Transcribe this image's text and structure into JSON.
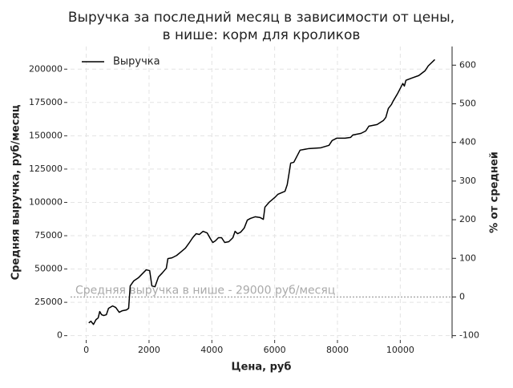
{
  "chart_data": {
    "type": "line",
    "title": [
      "Выручка за последний месяц в зависимости от цены,",
      "в нише: корм для кроликов"
    ],
    "x_label": "Цена, руб",
    "y_label": "Средняя выручка, руб/месяц",
    "y2_label": "% от средней",
    "x": [
      80,
      150,
      230,
      310,
      380,
      430,
      490,
      560,
      640,
      710,
      840,
      940,
      1050,
      1150,
      1280,
      1350,
      1400,
      1510,
      1660,
      1810,
      1910,
      2020,
      2090,
      2190,
      2300,
      2420,
      2550,
      2600,
      2730,
      2880,
      3040,
      3160,
      3270,
      3390,
      3500,
      3600,
      3720,
      3850,
      3950,
      4030,
      4110,
      4210,
      4310,
      4410,
      4540,
      4670,
      4740,
      4820,
      4920,
      5030,
      5130,
      5230,
      5380,
      5540,
      5640,
      5690,
      5820,
      6000,
      6100,
      6330,
      6400,
      6450,
      6510,
      6610,
      6810,
      7090,
      7470,
      7730,
      7830,
      7980,
      8240,
      8420,
      8490,
      8750,
      8900,
      9000,
      9260,
      9460,
      9540,
      9620,
      9720,
      9770,
      9920,
      10080,
      10130,
      10180,
      10380,
      10590,
      10790,
      10890,
      11100
    ],
    "series": [
      {
        "name": "Выручка",
        "color": "#000000",
        "values": [
          9600,
          10800,
          8400,
          12000,
          13300,
          18100,
          15700,
          15100,
          15700,
          20500,
          22300,
          21100,
          17500,
          18700,
          19300,
          20500,
          37300,
          41000,
          43400,
          47000,
          49400,
          48800,
          37300,
          36700,
          44000,
          47000,
          50600,
          57800,
          58400,
          60200,
          63300,
          65700,
          69300,
          73500,
          76500,
          75900,
          78300,
          77100,
          72900,
          69900,
          71100,
          73500,
          73500,
          69900,
          70500,
          73500,
          78300,
          76500,
          77700,
          80700,
          86700,
          88000,
          89200,
          88600,
          87300,
          96400,
          100000,
          103600,
          106000,
          108400,
          113300,
          120500,
          129500,
          130100,
          139200,
          140400,
          141000,
          142800,
          146400,
          148200,
          148200,
          148800,
          150600,
          151800,
          153600,
          157200,
          158400,
          161400,
          163800,
          170500,
          173500,
          175900,
          181900,
          189200,
          187300,
          191600,
          193400,
          195200,
          198800,
          202400,
          207200
        ]
      }
    ],
    "reference_line": {
      "value": 29000,
      "label": "Средняя выручка в нише - 29000 руб/месяц",
      "color": "#aaaaaa"
    },
    "xlim": [
      -500,
      11650
    ],
    "ylim": [
      -2000,
      217000
    ],
    "y2lim": [
      -106.9,
      648.3
    ],
    "xticks": [
      0,
      2000,
      4000,
      6000,
      8000,
      10000
    ],
    "yticks": [
      0,
      25000,
      50000,
      75000,
      100000,
      125000,
      150000,
      175000,
      200000
    ],
    "y2ticks": [
      -100,
      0,
      100,
      200,
      300,
      400,
      500,
      600
    ],
    "grid": true,
    "legend": "upper-left"
  }
}
